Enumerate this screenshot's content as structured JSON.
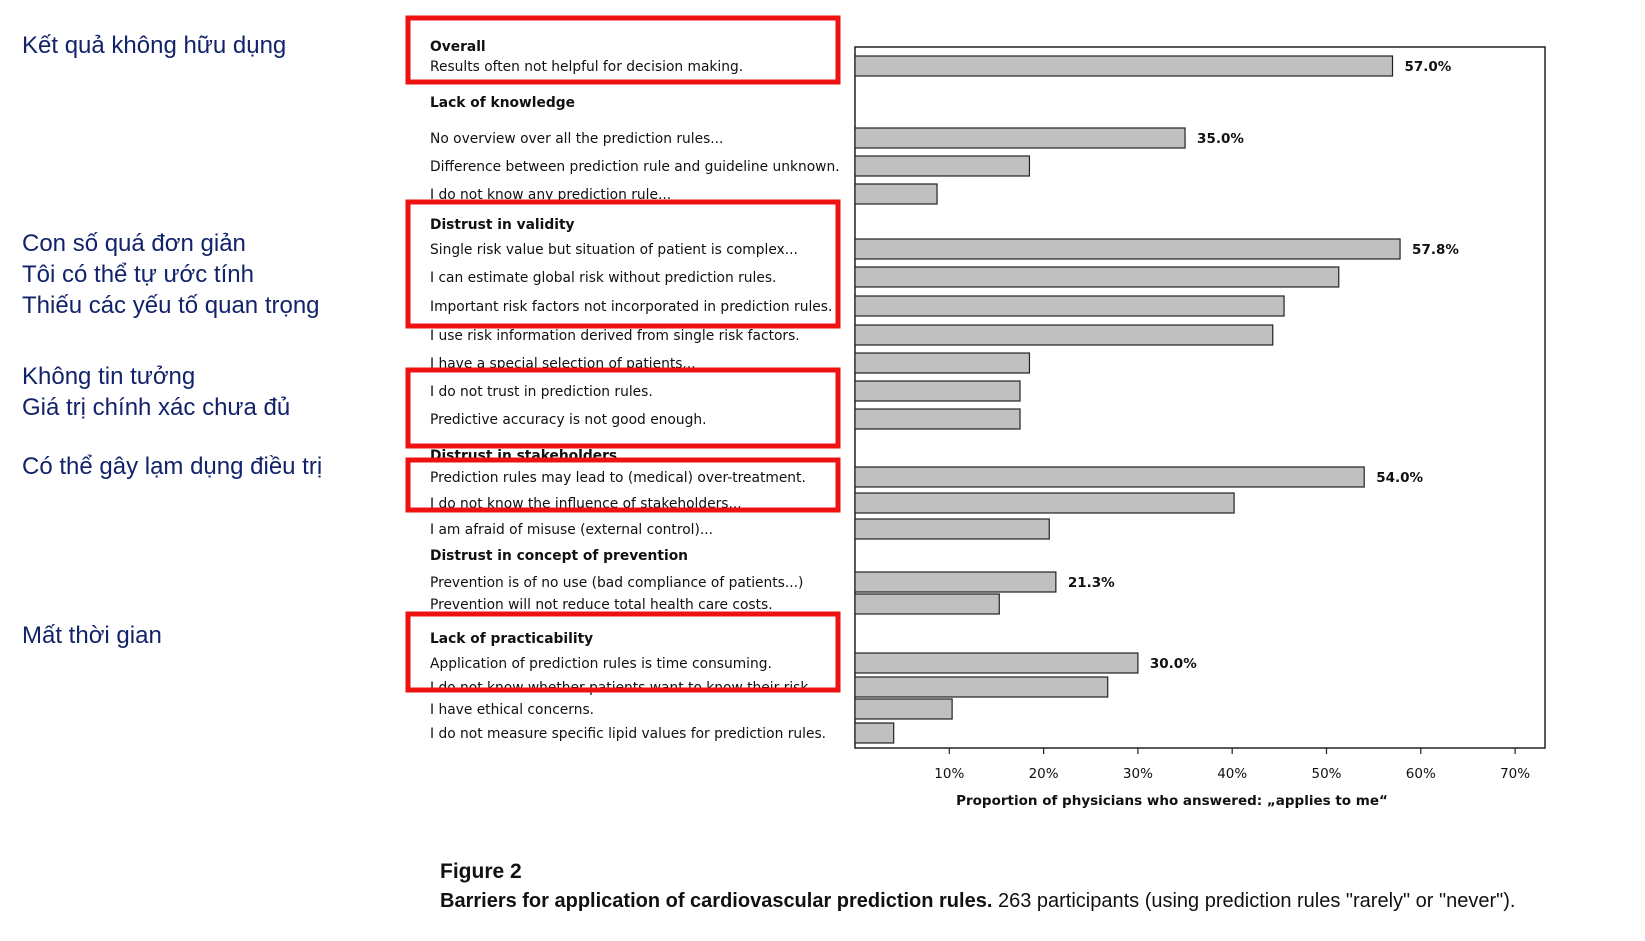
{
  "annotations": [
    {
      "lines": [
        "Kết quả không hữu dụng"
      ]
    },
    {
      "lines": [
        "Con số quá đơn giản",
        "Tôi có thể tự ước tính",
        "Thiếu các yếu tố quan trọng"
      ]
    },
    {
      "lines": [
        "Không tin tưởng",
        "Giá trị chính xác chưa đủ"
      ]
    },
    {
      "lines": [
        "Có thể gây lạm dụng điều trị"
      ]
    },
    {
      "lines": [
        "Mất thời gian"
      ]
    }
  ],
  "caption": {
    "figure_label": "Figure 2",
    "title": "Barriers for application of cardiovascular prediction rules.",
    "text": " 263 participants (using prediction rules \"rarely\" or \"never\")."
  },
  "chart_data": {
    "type": "bar",
    "orientation": "horizontal",
    "xlabel": "Proportion of physicians who answered: „applies to me“",
    "xlim": [
      0,
      73
    ],
    "xticks": [
      10,
      20,
      30,
      40,
      50,
      60,
      70
    ],
    "xtick_labels": [
      "10%",
      "20%",
      "30%",
      "40%",
      "50%",
      "60%",
      "70%"
    ],
    "rows": [
      {
        "group": "Overall"
      },
      {
        "label": "Results often not helpful for decision making.",
        "value": 57.0,
        "value_label": "57.0%"
      },
      {
        "group": "Lack of knowledge"
      },
      {
        "label": "No overview over all the prediction rules...",
        "value": 35.0,
        "value_label": "35.0%"
      },
      {
        "label": "Difference between prediction rule and guideline unknown.",
        "value": 18.5
      },
      {
        "label": "I do not know any prediction rule...",
        "value": 8.7
      },
      {
        "group": "Distrust in validity"
      },
      {
        "label": "Single risk value but situation of patient is complex...",
        "value": 57.8,
        "value_label": "57.8%"
      },
      {
        "label": "I can estimate global risk without prediction rules.",
        "value": 51.3
      },
      {
        "label": "Important risk factors not incorporated in prediction rules.",
        "value": 45.5
      },
      {
        "label": "I use risk information derived from single risk factors.",
        "value": 44.3
      },
      {
        "label": "I have a special selection of patients...",
        "value": 18.5
      },
      {
        "label": "I do not trust in prediction rules.",
        "value": 17.5
      },
      {
        "label": "Predictive accuracy is not good enough.",
        "value": 17.5
      },
      {
        "group": "Distrust in stakeholders"
      },
      {
        "label": "Prediction rules may lead to (medical) over-treatment.",
        "value": 54.0,
        "value_label": "54.0%"
      },
      {
        "label": "I do not know the influence of stakeholders...",
        "value": 40.2
      },
      {
        "label": "I am afraid of misuse (external control)...",
        "value": 20.6
      },
      {
        "group": "Distrust in concept of prevention"
      },
      {
        "label": "Prevention is of no use (bad compliance of patients...)",
        "value": 21.3,
        "value_label": "21.3%"
      },
      {
        "label": "Prevention will not reduce total health care costs.",
        "value": 15.3
      },
      {
        "group": "Lack of practicability"
      },
      {
        "label": "Application of prediction rules is time consuming.",
        "value": 30.0,
        "value_label": "30.0%"
      },
      {
        "label": "I do not know whether patients want to know their risk...",
        "value": 26.8
      },
      {
        "label": "I have ethical concerns.",
        "value": 10.3
      },
      {
        "label": "I do not measure specific lipid values for prediction rules.",
        "value": 4.1
      }
    ]
  },
  "colors": {
    "bar_fill": "#c0c0c0",
    "bar_stroke": "#222222",
    "highlight": "#ee1111",
    "annotation_text": "#12236a"
  }
}
